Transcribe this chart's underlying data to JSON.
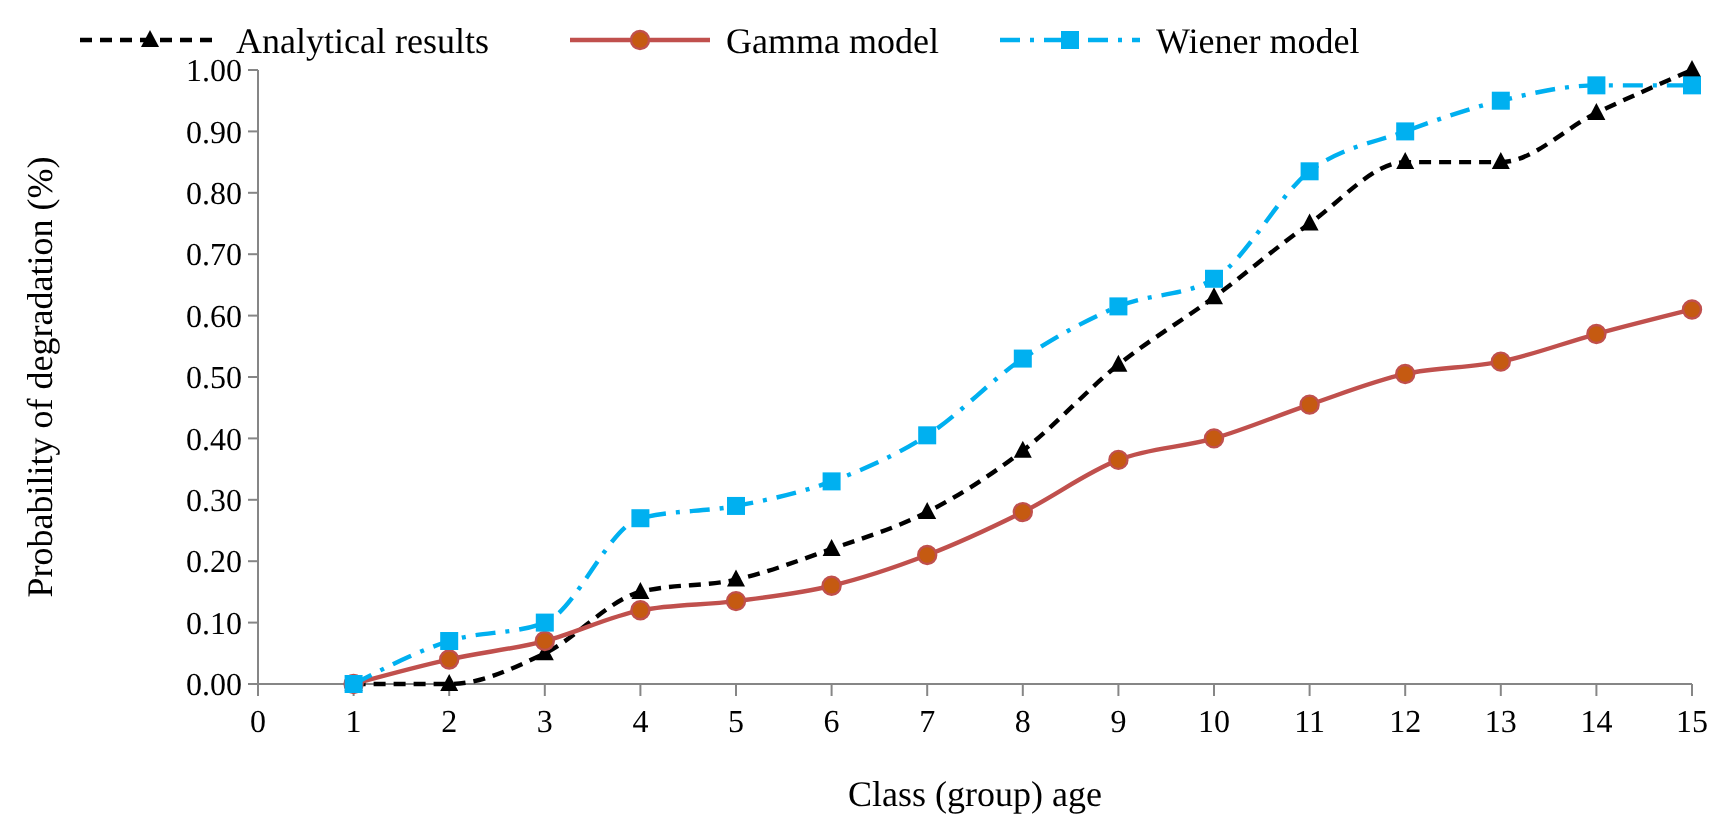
{
  "chart_data": {
    "type": "line",
    "xlabel": "Class (group) age",
    "ylabel": "Probability of degradation (%)",
    "x": [
      1,
      2,
      3,
      4,
      5,
      6,
      7,
      8,
      9,
      10,
      11,
      12,
      13,
      14,
      15
    ],
    "xlim": [
      0,
      15
    ],
    "xticks": [
      0,
      1,
      2,
      3,
      4,
      5,
      6,
      7,
      8,
      9,
      10,
      11,
      12,
      13,
      14,
      15
    ],
    "ylim": [
      0,
      1
    ],
    "yticks": [
      {
        "value": 0,
        "label": "0.00"
      },
      {
        "value": 0.1,
        "label": "0.10"
      },
      {
        "value": 0.2,
        "label": "0.20"
      },
      {
        "value": 0.3,
        "label": "0.30"
      },
      {
        "value": 0.4,
        "label": "0.40"
      },
      {
        "value": 0.5,
        "label": "0.50"
      },
      {
        "value": 0.6,
        "label": "0.60"
      },
      {
        "value": 0.7,
        "label": "0.70"
      },
      {
        "value": 0.8,
        "label": "0.80"
      },
      {
        "value": 0.9,
        "label": "0.90"
      },
      {
        "value": 1,
        "label": "1.00"
      }
    ],
    "grid": false,
    "legend": "top",
    "series": [
      {
        "name": "Analytical results",
        "color": "#000000",
        "marker": "triangle",
        "line_style": "dashed",
        "values": [
          0,
          0,
          0.05,
          0.15,
          0.17,
          0.22,
          0.28,
          0.38,
          0.52,
          0.63,
          0.75,
          0.85,
          0.85,
          0.93,
          1.0
        ]
      },
      {
        "name": "Gamma model",
        "color": "#c0504d",
        "marker": "circle",
        "line_style": "solid",
        "values": [
          0,
          0.04,
          0.07,
          0.12,
          0.135,
          0.16,
          0.21,
          0.28,
          0.365,
          0.4,
          0.455,
          0.505,
          0.525,
          0.57,
          0.61
        ]
      },
      {
        "name": "Wiener model",
        "color": "#00b0f0",
        "marker": "square",
        "line_style": "dashdot",
        "values": [
          0,
          0.07,
          0.1,
          0.27,
          0.29,
          0.33,
          0.405,
          0.53,
          0.615,
          0.66,
          0.835,
          0.9,
          0.95,
          0.975,
          0.975
        ]
      }
    ]
  }
}
